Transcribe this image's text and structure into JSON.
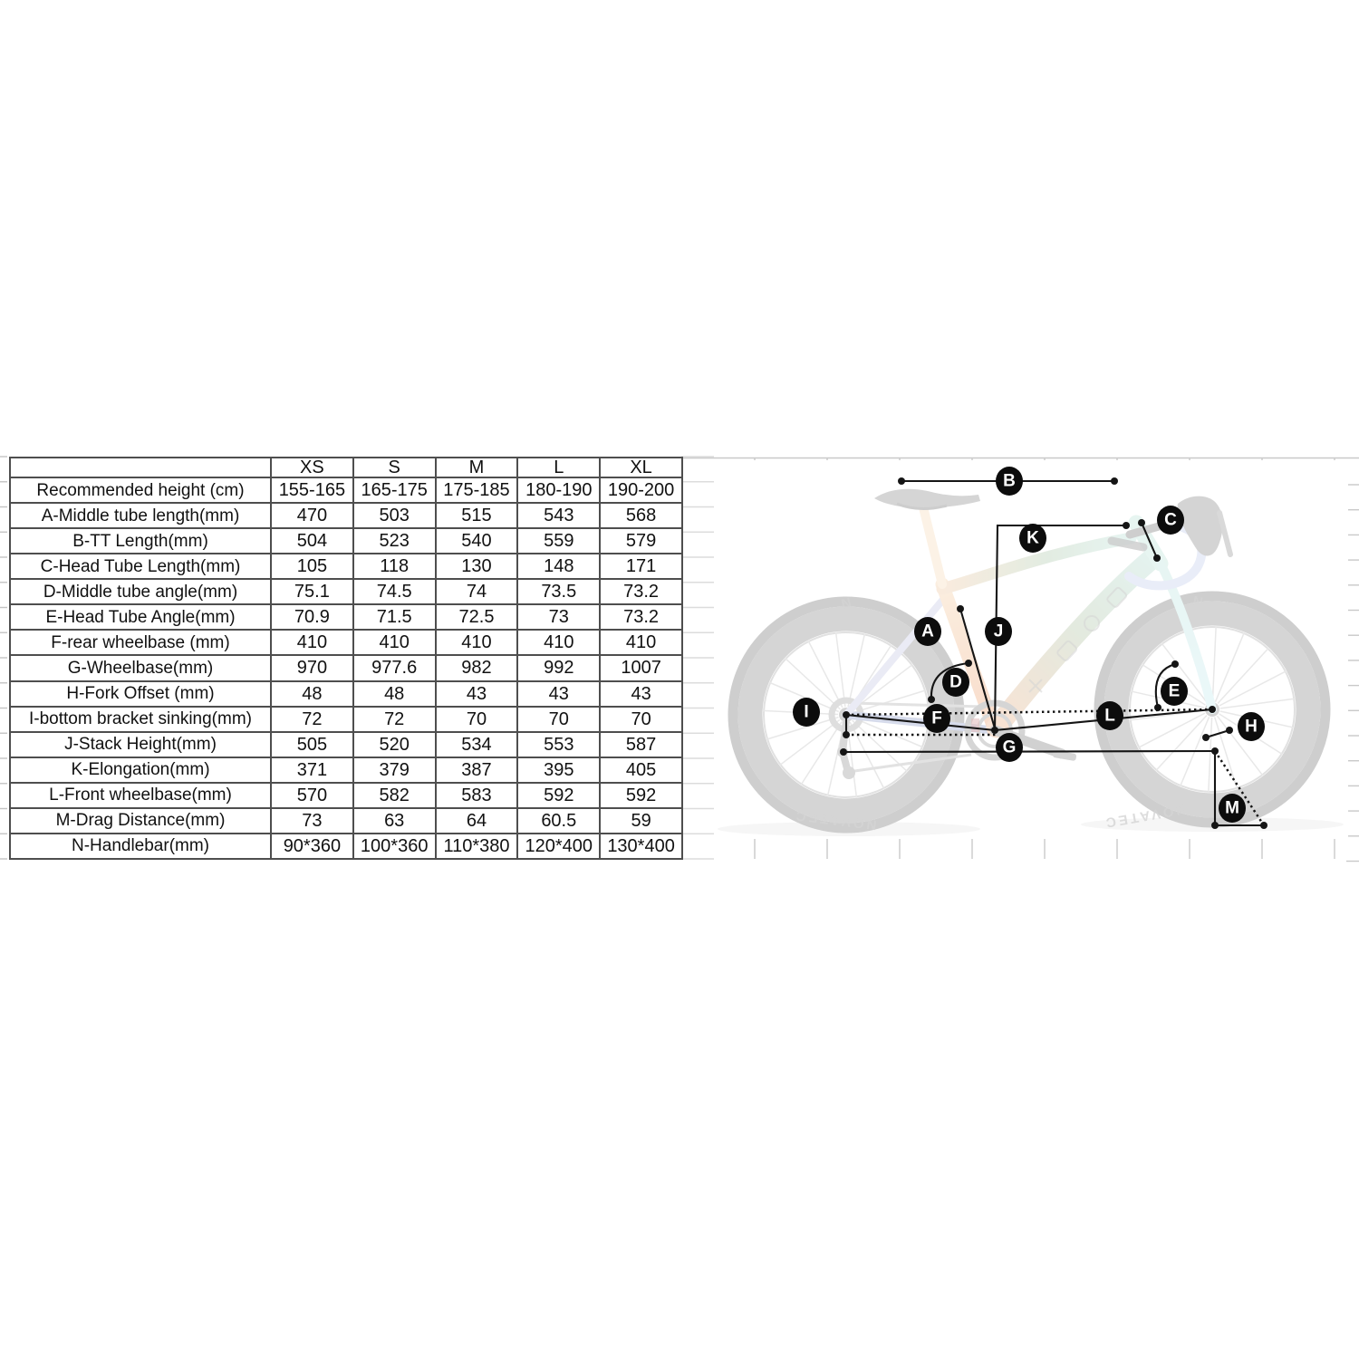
{
  "table": {
    "columns": [
      "",
      "XS",
      "S",
      "M",
      "L",
      "XL"
    ],
    "rows": [
      {
        "label": "Recommended height (cm)",
        "values": [
          "155-165",
          "165-175",
          "175-185",
          "180-190",
          "190-200"
        ]
      },
      {
        "label": "A-Middle tube length(mm)",
        "values": [
          "470",
          "503",
          "515",
          "543",
          "568"
        ]
      },
      {
        "label": "B-TT Length(mm)",
        "values": [
          "504",
          "523",
          "540",
          "559",
          "579"
        ]
      },
      {
        "label": "C-Head Tube Length(mm)",
        "values": [
          "105",
          "118",
          "130",
          "148",
          "171"
        ]
      },
      {
        "label": "D-Middle tube angle(mm)",
        "values": [
          "75.1",
          "74.5",
          "74",
          "73.5",
          "73.2"
        ]
      },
      {
        "label": "E-Head Tube Angle(mm)",
        "values": [
          "70.9",
          "71.5",
          "72.5",
          "73",
          "73.2"
        ]
      },
      {
        "label": "F-rear wheelbase (mm)",
        "values": [
          "410",
          "410",
          "410",
          "410",
          "410"
        ]
      },
      {
        "label": "G-Wheelbase(mm)",
        "values": [
          "970",
          "977.6",
          "982",
          "992",
          "1007"
        ]
      },
      {
        "label": "H-Fork Offset (mm)",
        "values": [
          "48",
          "48",
          "43",
          "43",
          "43"
        ]
      },
      {
        "label": "I-bottom bracket sinking(mm)",
        "values": [
          "72",
          "72",
          "70",
          "70",
          "70"
        ]
      },
      {
        "label": "J-Stack Height(mm)",
        "values": [
          "505",
          "520",
          "534",
          "553",
          "587"
        ]
      },
      {
        "label": "K-Elongation(mm)",
        "values": [
          "371",
          "379",
          "387",
          "395",
          "405"
        ]
      },
      {
        "label": "L-Front wheelbase(mm)",
        "values": [
          "570",
          "582",
          "583",
          "592",
          "592"
        ]
      },
      {
        "label": "M-Drag Distance(mm)",
        "values": [
          "73",
          "63",
          "64",
          "60.5",
          "59"
        ]
      },
      {
        "label": "N-Handlebar(mm)",
        "values": [
          "90*360",
          "100*360",
          "110*380",
          "120*400",
          "130*400"
        ]
      }
    ]
  },
  "diagram": {
    "labels": {
      "A": "A",
      "B": "B",
      "C": "C",
      "D": "D",
      "E": "E",
      "F": "F",
      "G": "G",
      "H": "H",
      "I": "I",
      "J": "J",
      "K": "K",
      "L": "L",
      "M": "M"
    },
    "rim_brand": "NOVATEC",
    "rim_mark": "N",
    "label_color": "#0c0c0c",
    "line_color": "#151515"
  }
}
